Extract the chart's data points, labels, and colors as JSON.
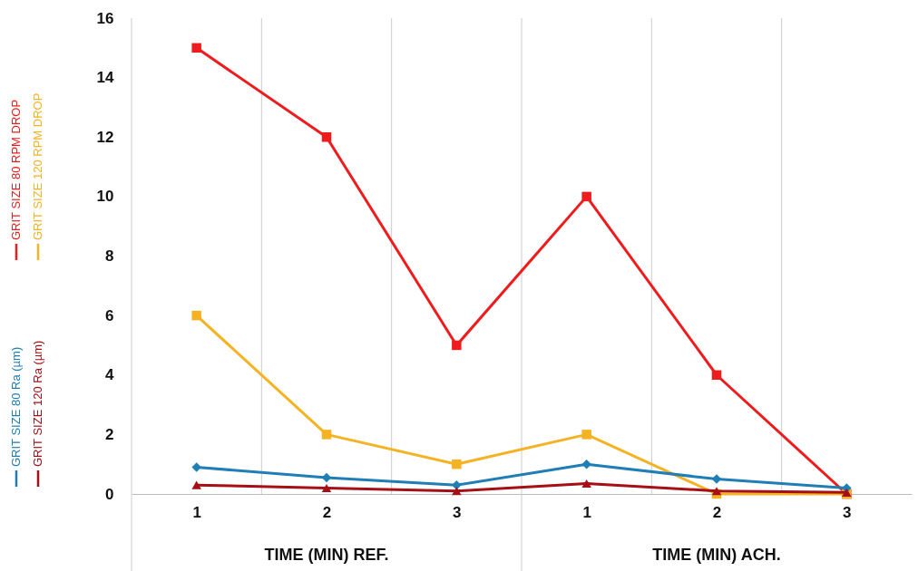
{
  "chart_data": {
    "type": "line",
    "categories": [
      "1",
      "2",
      "3",
      "1",
      "2",
      "3"
    ],
    "series": [
      {
        "name": "GRIT SIZE 80 RPM DROP",
        "color": "#ee1c1c",
        "marker": "square",
        "values": [
          15,
          12,
          5,
          10,
          4,
          0
        ]
      },
      {
        "name": "GRIT SIZE 120 RPM DROP",
        "color": "#f5b223",
        "marker": "square",
        "values": [
          6,
          2,
          1,
          2,
          0,
          0
        ]
      },
      {
        "name": "GRIT SIZE 80 Ra (µm)",
        "color": "#1f7eb5",
        "marker": "diamond",
        "values": [
          0.9,
          0.55,
          0.3,
          1.0,
          0.5,
          0.2
        ]
      },
      {
        "name": "GRIT SIZE 120 Ra (µm)",
        "color": "#a50f15",
        "marker": "triangle",
        "values": [
          0.3,
          0.2,
          0.1,
          0.35,
          0.1,
          0.05
        ]
      }
    ],
    "ylim": [
      0,
      16
    ],
    "yticks": [
      0,
      2,
      4,
      6,
      8,
      10,
      12,
      14,
      16
    ],
    "annotations": [
      "TIME (MIN) REF.",
      "TIME (MIN) ACH."
    ],
    "grid": "x",
    "legend": "left",
    "line_style": "solid"
  }
}
